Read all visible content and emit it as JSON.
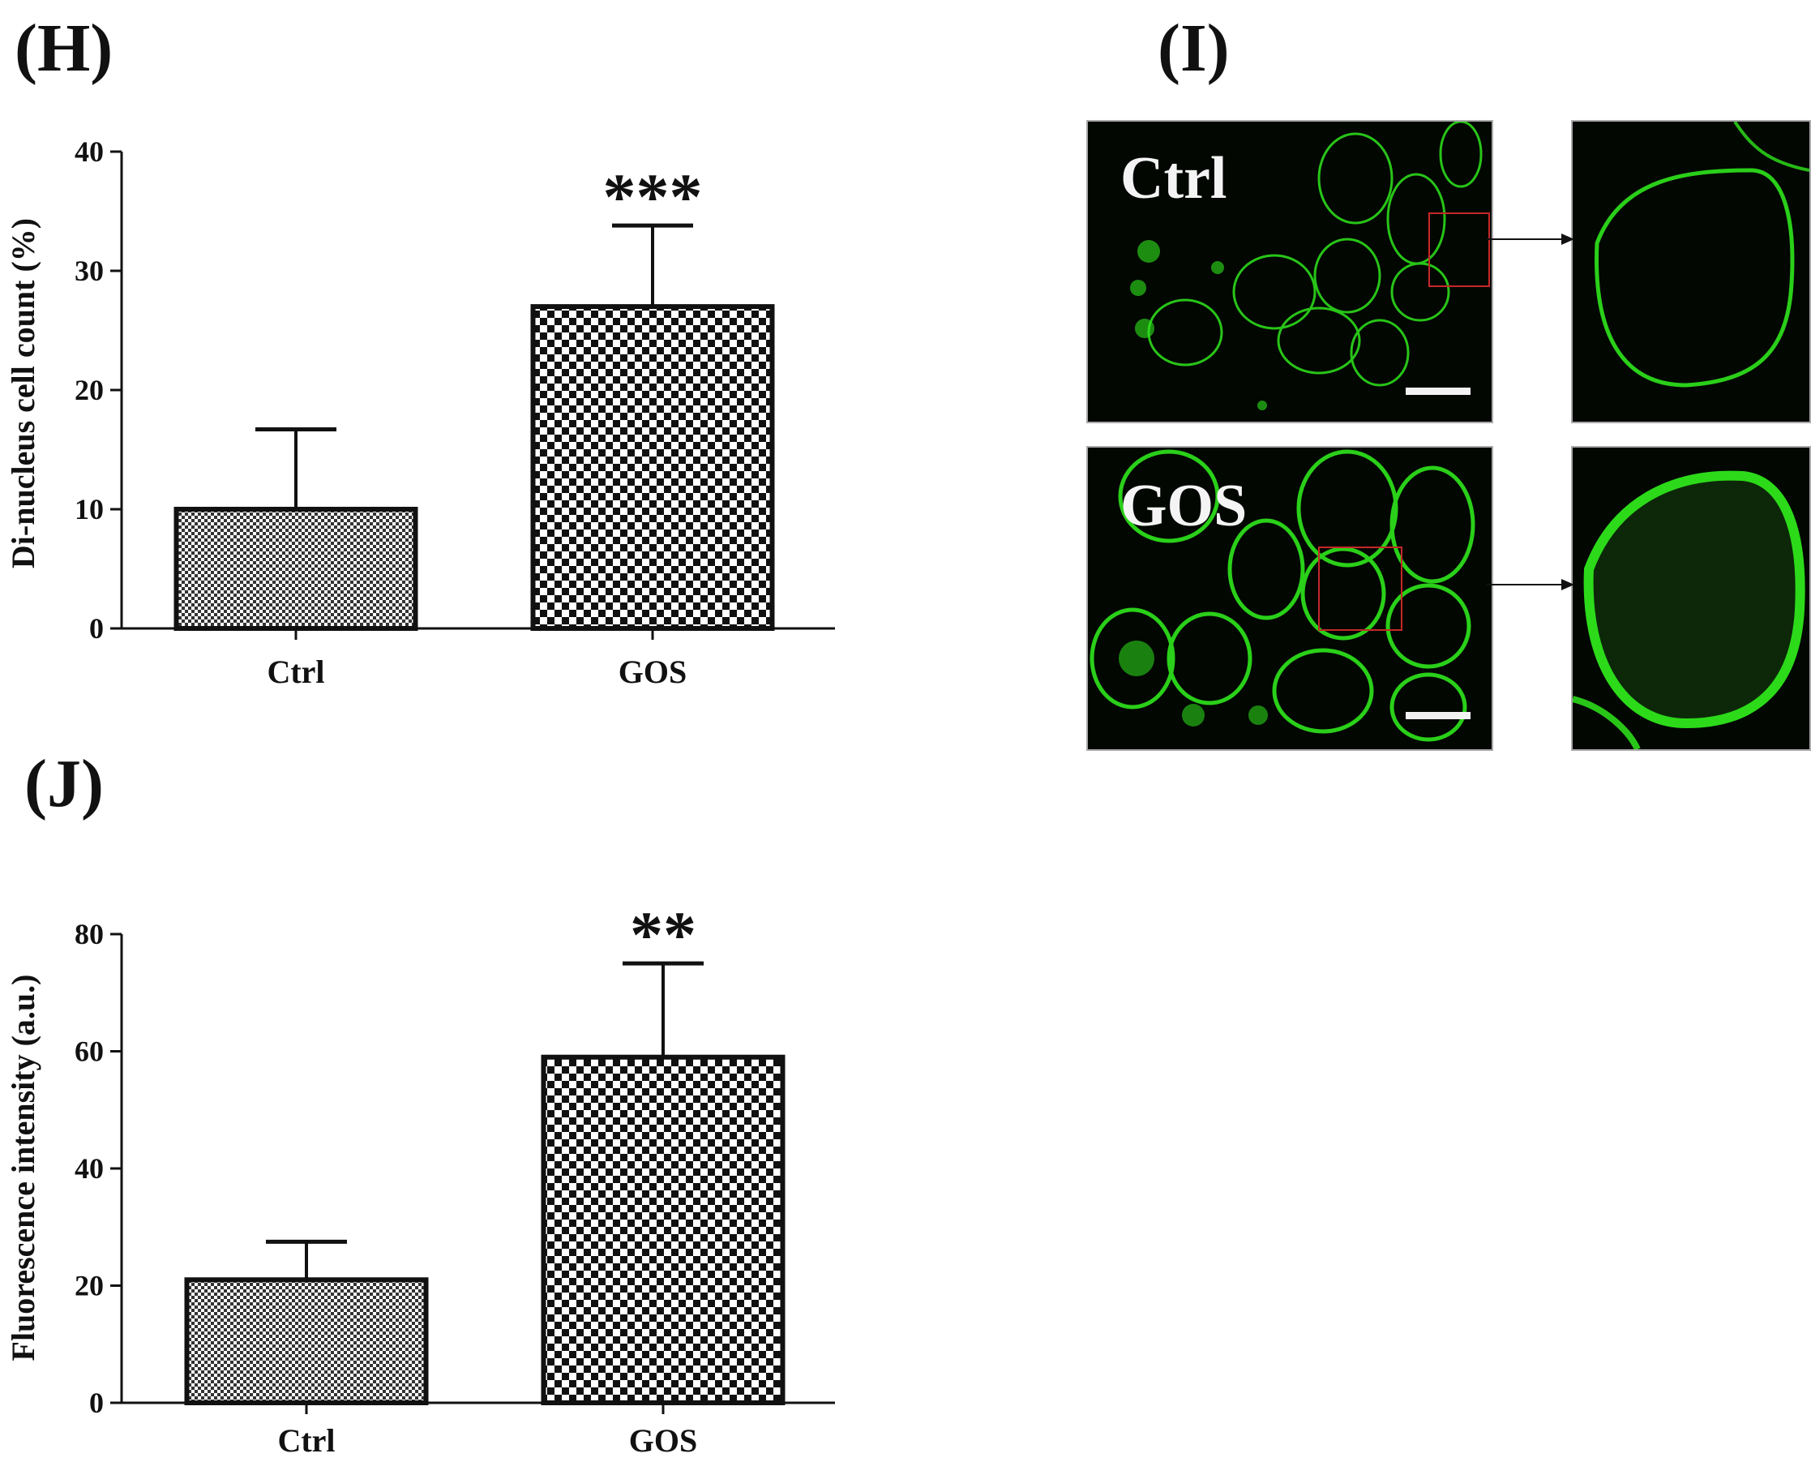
{
  "panels": {
    "h_label": "(H)",
    "i_label": "(I)",
    "j_label": "(J)"
  },
  "micrographs": {
    "ctrl_label": "Ctrl",
    "gos_label": "GOS",
    "cell_color": "#2fe61c",
    "roi_color": "#c62828"
  },
  "chart_data": [
    {
      "type": "bar",
      "panel": "H",
      "categories": [
        "Ctrl",
        "GOS"
      ],
      "values": [
        10,
        27
      ],
      "errors": [
        6.7,
        6.8
      ],
      "significance": [
        "",
        "***"
      ],
      "ylabel": "Di-nucleus cell count (%)",
      "xlabel": "",
      "ylim": [
        0,
        40
      ],
      "yticks": [
        0,
        10,
        20,
        30,
        40
      ],
      "patterns": [
        "fine-checker",
        "coarse-checker"
      ],
      "grid": false
    },
    {
      "type": "bar",
      "panel": "J",
      "categories": [
        "Ctrl",
        "GOS"
      ],
      "values": [
        21,
        59
      ],
      "errors": [
        6.5,
        16
      ],
      "significance": [
        "",
        "**"
      ],
      "ylabel": "Fluorescence intensity (a.u.)",
      "xlabel": "",
      "ylim": [
        0,
        80
      ],
      "yticks": [
        0,
        20,
        40,
        60,
        80
      ],
      "patterns": [
        "fine-checker",
        "coarse-checker"
      ],
      "grid": false
    }
  ]
}
